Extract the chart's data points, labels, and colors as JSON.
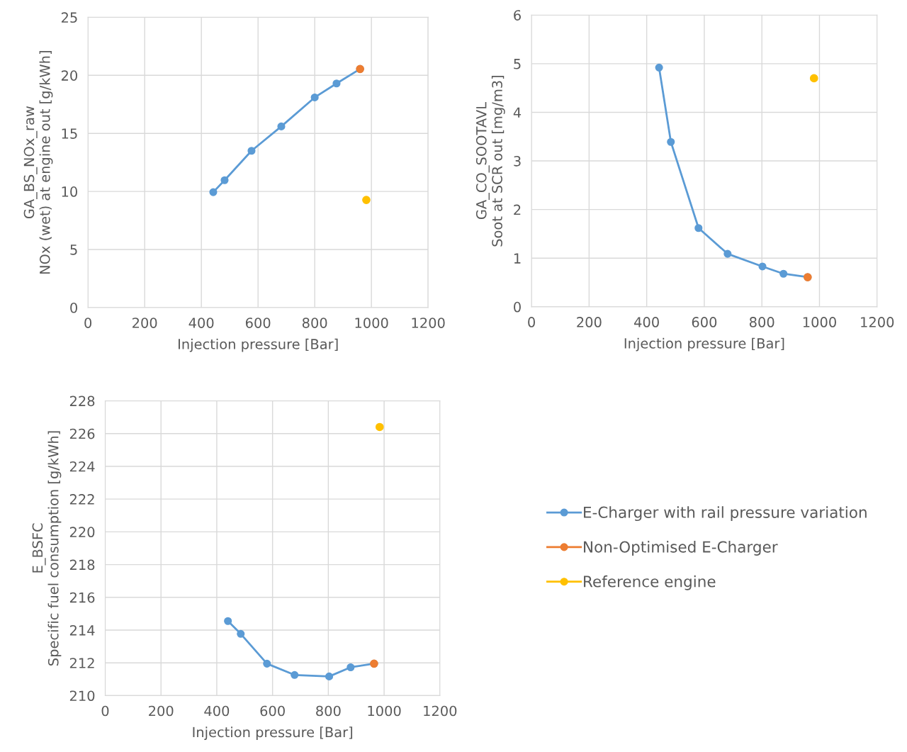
{
  "chart_data": [
    {
      "type": "line",
      "xlabel": "Injection pressure [Bar]",
      "ylabel": "GA_BS_NOx_raw\nNOx (wet) at engine out [g/kWh]",
      "xlim": [
        0,
        1200
      ],
      "xticks": [
        0,
        200,
        400,
        600,
        800,
        1000,
        1200
      ],
      "ylim": [
        0,
        25
      ],
      "yticks": [
        0,
        5,
        10,
        15,
        20,
        25
      ],
      "grid": true,
      "marker": "circle",
      "legend": false,
      "series": [
        {
          "color": "#5b9bd5",
          "x": [
            442,
            482,
            577,
            682,
            800,
            877,
            960
          ],
          "values": [
            9.94,
            10.97,
            13.5,
            15.6,
            18.1,
            19.3,
            20.55
          ]
        },
        {
          "type": "scatter",
          "color": "#ed7d31",
          "x": [
            960
          ],
          "values": [
            20.55
          ]
        },
        {
          "type": "scatter",
          "color": "#ffc000",
          "x": [
            982
          ],
          "values": [
            9.27
          ]
        }
      ]
    },
    {
      "type": "line",
      "xlabel": "Injection pressure [Bar]",
      "ylabel": "GA_CO_SOOTAVL\nSoot at SCR out [mg/m3]",
      "xlim": [
        0,
        1200
      ],
      "xticks": [
        0,
        200,
        400,
        600,
        800,
        1000,
        1200
      ],
      "ylim": [
        0,
        6
      ],
      "yticks": [
        0,
        1,
        2,
        3,
        4,
        5,
        6
      ],
      "grid": true,
      "marker": "circle",
      "legend": false,
      "series": [
        {
          "color": "#5b9bd5",
          "x": [
            443,
            484,
            580,
            681,
            802,
            875,
            959
          ],
          "values": [
            4.92,
            3.39,
            1.62,
            1.09,
            0.83,
            0.68,
            0.61
          ]
        },
        {
          "type": "scatter",
          "color": "#ed7d31",
          "x": [
            959
          ],
          "values": [
            0.61
          ]
        },
        {
          "type": "scatter",
          "color": "#ffc000",
          "x": [
            981
          ],
          "values": [
            4.7
          ]
        }
      ]
    },
    {
      "type": "line",
      "xlabel": "Injection pressure [Bar]",
      "ylabel": "E_BSFC\nSpecific fuel consumption [g/kWh]",
      "xlim": [
        0,
        1200
      ],
      "xticks": [
        0,
        200,
        400,
        600,
        800,
        1000,
        1200
      ],
      "ylim": [
        210,
        228
      ],
      "yticks": [
        210,
        212,
        214,
        216,
        218,
        220,
        222,
        224,
        226,
        228
      ],
      "grid": true,
      "marker": "circle",
      "legend": "right",
      "series": [
        {
          "name": "E-Charger with rail pressure variation",
          "color": "#5b9bd5",
          "x": [
            440,
            486,
            580,
            679,
            803,
            880,
            964
          ],
          "values": [
            214.55,
            213.77,
            211.95,
            211.26,
            211.17,
            211.73,
            211.95
          ]
        },
        {
          "type": "scatter",
          "name": "Non-Optimised E-Charger",
          "color": "#ed7d31",
          "x": [
            964
          ],
          "values": [
            211.95
          ]
        },
        {
          "type": "scatter",
          "name": "Reference engine",
          "color": "#ffc000",
          "x": [
            984
          ],
          "values": [
            226.4
          ]
        }
      ]
    }
  ]
}
